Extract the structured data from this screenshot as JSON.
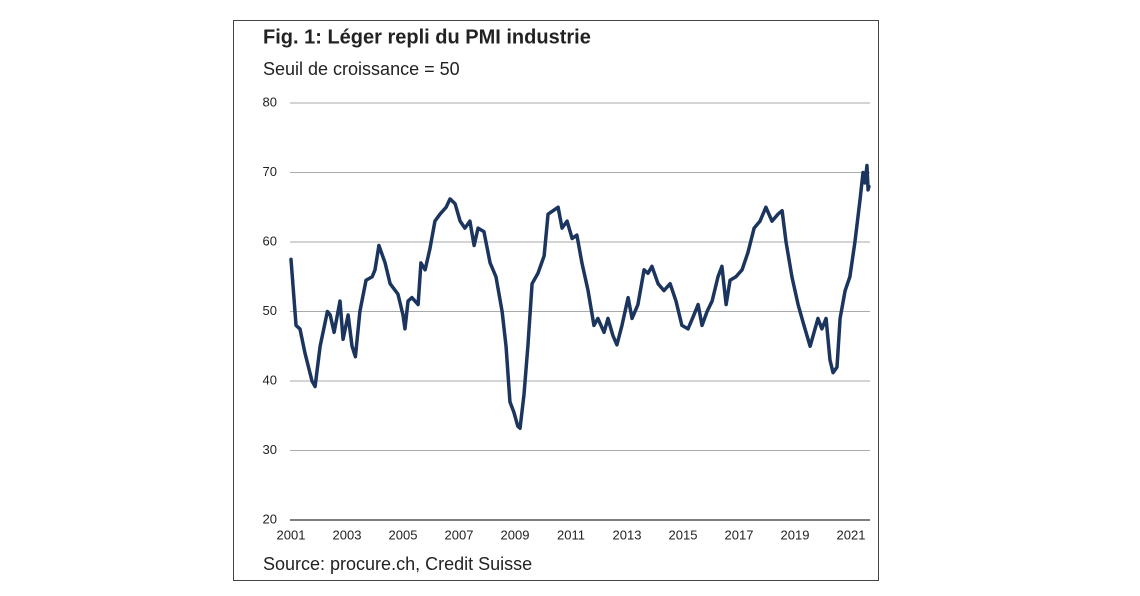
{
  "chart_data": {
    "type": "line",
    "title": "Fig. 1: Léger repli du PMI industrie",
    "subtitle": "Seuil de croissance = 50",
    "source": "Source: procure.ch, Credit Suisse",
    "color": "#1b355e",
    "grid": true,
    "xlim": [
      2001,
      2021.7
    ],
    "xticks": [
      2001,
      2003,
      2005,
      2007,
      2009,
      2011,
      2013,
      2015,
      2017,
      2019,
      2021
    ],
    "ylim": [
      20,
      80
    ],
    "yticks": [
      20,
      30,
      40,
      50,
      60,
      70,
      80
    ],
    "x": [
      2001.0,
      2001.18,
      2001.32,
      2001.5,
      2001.75,
      2001.86,
      2002.04,
      2002.3,
      2002.4,
      2002.54,
      2002.75,
      2002.86,
      2003.04,
      2003.18,
      2003.3,
      2003.46,
      2003.68,
      2003.9,
      2004.0,
      2004.14,
      2004.36,
      2004.54,
      2004.82,
      2005.0,
      2005.07,
      2005.18,
      2005.32,
      2005.54,
      2005.64,
      2005.79,
      2005.96,
      2006.14,
      2006.32,
      2006.54,
      2006.68,
      2006.86,
      2007.04,
      2007.21,
      2007.39,
      2007.54,
      2007.68,
      2007.89,
      2008.11,
      2008.32,
      2008.54,
      2008.68,
      2008.82,
      2008.96,
      2009.1,
      2009.18,
      2009.32,
      2009.46,
      2009.61,
      2009.82,
      2010.04,
      2010.18,
      2010.36,
      2010.54,
      2010.68,
      2010.86,
      2011.04,
      2011.21,
      2011.39,
      2011.61,
      2011.82,
      2011.96,
      2012.18,
      2012.32,
      2012.5,
      2012.64,
      2012.82,
      2013.04,
      2013.18,
      2013.39,
      2013.61,
      2013.75,
      2013.89,
      2014.11,
      2014.32,
      2014.54,
      2014.75,
      2014.96,
      2015.18,
      2015.39,
      2015.54,
      2015.68,
      2015.86,
      2016.04,
      2016.25,
      2016.39,
      2016.54,
      2016.68,
      2016.89,
      2017.11,
      2017.32,
      2017.54,
      2017.75,
      2017.96,
      2018.18,
      2018.39,
      2018.54,
      2018.68,
      2018.89,
      2019.11,
      2019.32,
      2019.54,
      2019.68,
      2019.82,
      2019.96,
      2020.11,
      2020.25,
      2020.36,
      2020.5,
      2020.61,
      2020.79,
      2020.96,
      2021.14,
      2021.32,
      2021.43,
      2021.5,
      2021.57,
      2021.61,
      2021.64
    ],
    "values": [
      57.5,
      48,
      47.5,
      44,
      40,
      39.2,
      45,
      50,
      49.5,
      47,
      51.5,
      46,
      49.5,
      45,
      43.5,
      50,
      54.5,
      55,
      56,
      59.5,
      57,
      54,
      52.5,
      49.5,
      47.5,
      51.5,
      52,
      51,
      57,
      56,
      59,
      63,
      64,
      65,
      66.2,
      65.5,
      63,
      62,
      63,
      59.5,
      62,
      61.5,
      57,
      55,
      50,
      45,
      37,
      35.5,
      33.5,
      33.2,
      38,
      45,
      54,
      55.5,
      58,
      64,
      64.5,
      65,
      62,
      63,
      60.5,
      61,
      57,
      53,
      48,
      49,
      47,
      49,
      46.5,
      45.2,
      48,
      52,
      49,
      51,
      56,
      55.5,
      56.5,
      54,
      53,
      54,
      51.5,
      48,
      47.5,
      49.5,
      51,
      48,
      50,
      51.5,
      55,
      56.5,
      51,
      54.5,
      55,
      56,
      58.5,
      62,
      63,
      65,
      63,
      64,
      64.5,
      60,
      55,
      51,
      48,
      45,
      47,
      49,
      47.5,
      49,
      43,
      41.2,
      42,
      49,
      53,
      55,
      60,
      66,
      70,
      68.5,
      71,
      67.5,
      68
    ]
  }
}
